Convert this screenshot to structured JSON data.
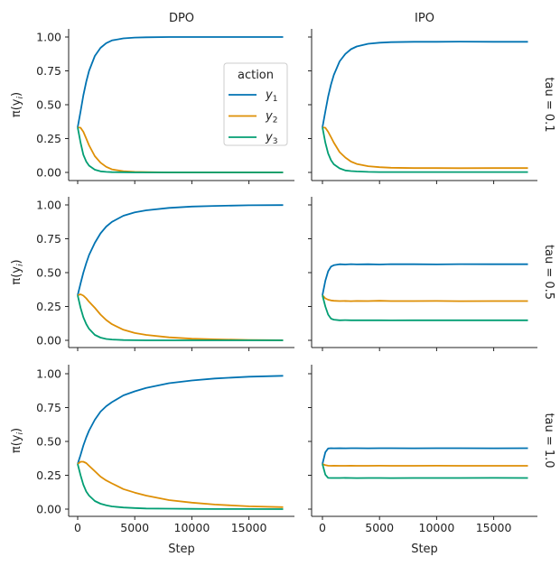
{
  "chart_data": {
    "type": "line",
    "layout": "facet-grid 3 rows x 2 columns",
    "col_titles": [
      "DPO",
      "IPO"
    ],
    "row_titles": [
      "tau = 0.1",
      "tau = 0.5",
      "tau = 1.0"
    ],
    "xlabel": "Step",
    "ylabel_base": "π(y",
    "ylabel_sub": "i",
    "xlim": [
      -1000,
      19000
    ],
    "ylim": [
      -0.06,
      1.06
    ],
    "xticks": [
      0,
      5000,
      10000,
      15000
    ],
    "yticks": [
      "0.00",
      "0.25",
      "0.50",
      "0.75",
      "1.00"
    ],
    "grid": false,
    "legend": {
      "title": "action",
      "placement": "center-right of top-left panel",
      "entries": [
        {
          "base": "y",
          "sub": "1"
        },
        {
          "base": "y",
          "sub": "2"
        },
        {
          "base": "y",
          "sub": "3"
        }
      ]
    },
    "colors": [
      "#0173b2",
      "#de8f05",
      "#029e73"
    ],
    "x": [
      0,
      250,
      500,
      750,
      1000,
      1500,
      2000,
      2500,
      3000,
      4000,
      5000,
      6000,
      8000,
      10000,
      12000,
      15000,
      18000
    ],
    "panels": [
      {
        "row": 0,
        "col": 0,
        "series": [
          [
            0.333,
            0.45,
            0.57,
            0.67,
            0.75,
            0.86,
            0.92,
            0.955,
            0.975,
            0.99,
            0.996,
            0.998,
            1,
            1,
            1,
            1,
            1
          ],
          [
            0.333,
            0.33,
            0.3,
            0.25,
            0.2,
            0.12,
            0.072,
            0.041,
            0.023,
            0.009,
            0.004,
            0.002,
            0,
            0,
            0,
            0,
            0
          ],
          [
            0.333,
            0.22,
            0.13,
            0.08,
            0.05,
            0.02,
            0.008,
            0.004,
            0.002,
            0.001,
            0,
            0,
            0,
            0,
            0,
            0,
            0
          ]
        ]
      },
      {
        "row": 0,
        "col": 1,
        "series": [
          [
            0.333,
            0.45,
            0.56,
            0.65,
            0.72,
            0.82,
            0.875,
            0.91,
            0.93,
            0.95,
            0.958,
            0.962,
            0.965,
            0.965,
            0.966,
            0.965,
            0.965
          ],
          [
            0.333,
            0.33,
            0.3,
            0.26,
            0.22,
            0.15,
            0.11,
            0.08,
            0.063,
            0.046,
            0.039,
            0.035,
            0.032,
            0.032,
            0.031,
            0.032,
            0.032
          ],
          [
            0.333,
            0.22,
            0.14,
            0.09,
            0.06,
            0.03,
            0.015,
            0.01,
            0.007,
            0.004,
            0.003,
            0.003,
            0.003,
            0.003,
            0.003,
            0.003,
            0.003
          ]
        ]
      },
      {
        "row": 1,
        "col": 0,
        "series": [
          [
            0.333,
            0.42,
            0.5,
            0.57,
            0.63,
            0.72,
            0.79,
            0.84,
            0.875,
            0.92,
            0.945,
            0.96,
            0.978,
            0.988,
            0.993,
            0.997,
            0.999
          ],
          [
            0.333,
            0.34,
            0.33,
            0.31,
            0.285,
            0.24,
            0.19,
            0.15,
            0.119,
            0.078,
            0.054,
            0.04,
            0.022,
            0.012,
            0.007,
            0.003,
            0.001
          ],
          [
            0.333,
            0.24,
            0.17,
            0.12,
            0.085,
            0.04,
            0.02,
            0.01,
            0.006,
            0.002,
            0.001,
            0,
            0,
            0,
            0,
            0,
            0
          ]
        ]
      },
      {
        "row": 1,
        "col": 1,
        "series": [
          [
            0.333,
            0.44,
            0.51,
            0.545,
            0.555,
            0.562,
            0.56,
            0.563,
            0.561,
            0.562,
            0.56,
            0.563,
            0.562,
            0.561,
            0.563,
            0.562,
            0.562
          ],
          [
            0.333,
            0.31,
            0.3,
            0.295,
            0.292,
            0.29,
            0.291,
            0.289,
            0.291,
            0.29,
            0.292,
            0.29,
            0.29,
            0.291,
            0.289,
            0.29,
            0.29
          ],
          [
            0.333,
            0.25,
            0.19,
            0.16,
            0.153,
            0.148,
            0.149,
            0.148,
            0.148,
            0.148,
            0.148,
            0.147,
            0.148,
            0.148,
            0.148,
            0.148,
            0.148
          ]
        ]
      },
      {
        "row": 2,
        "col": 0,
        "series": [
          [
            0.333,
            0.4,
            0.47,
            0.53,
            0.58,
            0.66,
            0.72,
            0.76,
            0.79,
            0.84,
            0.87,
            0.895,
            0.93,
            0.95,
            0.965,
            0.978,
            0.985
          ],
          [
            0.333,
            0.35,
            0.35,
            0.34,
            0.32,
            0.28,
            0.24,
            0.212,
            0.19,
            0.148,
            0.122,
            0.1,
            0.067,
            0.048,
            0.034,
            0.021,
            0.015
          ],
          [
            0.333,
            0.25,
            0.18,
            0.13,
            0.1,
            0.06,
            0.04,
            0.028,
            0.02,
            0.012,
            0.008,
            0.005,
            0.003,
            0.002,
            0.001,
            0.001,
            0.0
          ]
        ]
      },
      {
        "row": 2,
        "col": 1,
        "series": [
          [
            0.333,
            0.42,
            0.448,
            0.45,
            0.449,
            0.45,
            0.449,
            0.45,
            0.45,
            0.449,
            0.45,
            0.45,
            0.449,
            0.45,
            0.45,
            0.449,
            0.45
          ],
          [
            0.333,
            0.325,
            0.321,
            0.32,
            0.321,
            0.32,
            0.32,
            0.321,
            0.32,
            0.32,
            0.321,
            0.32,
            0.32,
            0.321,
            0.32,
            0.32,
            0.32
          ],
          [
            0.333,
            0.255,
            0.231,
            0.23,
            0.23,
            0.23,
            0.231,
            0.23,
            0.229,
            0.23,
            0.23,
            0.229,
            0.23,
            0.23,
            0.23,
            0.231,
            0.23
          ]
        ]
      }
    ]
  }
}
